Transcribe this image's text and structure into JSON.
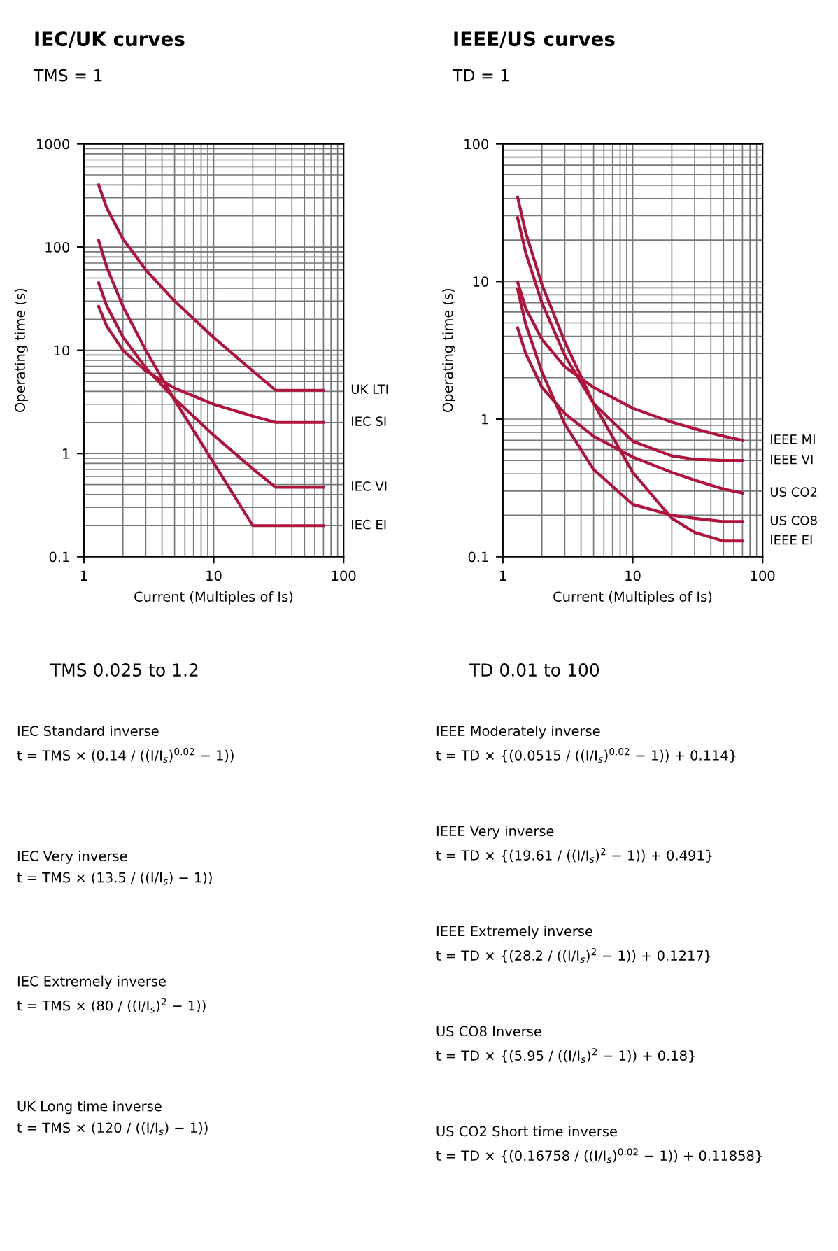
{
  "chart_data": [
    {
      "type": "line",
      "title": "IEC/UK curves",
      "subtitle": "TMS = 1",
      "xlabel": "Current (Multiples of Is)",
      "ylabel": "Operating time (s)",
      "log": "xy",
      "grid": true,
      "xlim": [
        1,
        100
      ],
      "ylim": [
        0.1,
        1000
      ],
      "xticks": [
        1,
        10,
        100
      ],
      "yticks": [
        0.1,
        1,
        10,
        100,
        1000
      ],
      "line_style": "solid",
      "series": [
        {
          "name": "UK LTI",
          "color": "#b0143c",
          "x": [
            1.3,
            1.5,
            2,
            3,
            5,
            10,
            20,
            30,
            70
          ],
          "values": [
            400,
            240,
            120,
            60,
            30,
            13.3,
            6.3,
            4.1,
            4.1
          ]
        },
        {
          "name": "IEC SI",
          "color": "#b0143c",
          "x": [
            1.3,
            1.5,
            2,
            3,
            5,
            10,
            20,
            30,
            70
          ],
          "values": [
            26.6,
            17.2,
            10,
            6.3,
            4.3,
            3,
            2.3,
            2,
            2
          ]
        },
        {
          "name": "IEC VI",
          "color": "#b0143c",
          "x": [
            1.3,
            1.5,
            2,
            3,
            5,
            10,
            20,
            30,
            70
          ],
          "values": [
            45,
            27,
            13.5,
            6.75,
            3.4,
            1.5,
            0.71,
            0.47,
            0.47
          ]
        },
        {
          "name": "IEC EI",
          "color": "#b0143c",
          "x": [
            1.3,
            1.5,
            2,
            3,
            5,
            10,
            20,
            70
          ],
          "values": [
            116,
            64,
            26.7,
            10,
            3.3,
            0.81,
            0.2,
            0.2
          ]
        }
      ],
      "annotations": [
        "TMS 0.025 to 1.2",
        "IEC Standard inverse\nt = TMS × (0.14 / ((I/I$_{s}$)$^{0.02}$ − 1))",
        "IEC Very inverse\nt = TMS × (13.5 / ((I/I$_{s}$) − 1))",
        "IEC Extremely inverse\nt = TMS × (80 / ((I/I$_{s}$)$^{2}$ − 1))",
        "UK Long time inverse\nt = TMS × (120 / ((I/I$_{s}$) − 1))"
      ]
    },
    {
      "type": "line",
      "title": "IEEE/US curves",
      "subtitle": "TD = 1",
      "xlabel": "Current (Multiples of Is)",
      "ylabel": "Operating time (s)",
      "log": "xy",
      "grid": true,
      "xlim": [
        1,
        100
      ],
      "ylim": [
        0.1,
        100
      ],
      "xticks": [
        1,
        10,
        100
      ],
      "yticks": [
        0.1,
        1,
        10,
        100
      ],
      "line_style": "solid",
      "series": [
        {
          "name": "IEEE MI",
          "color": "#b0143c",
          "x": [
            1.3,
            1.5,
            2,
            3,
            5,
            10,
            20,
            30,
            50,
            70
          ],
          "values": [
            9.9,
            6.4,
            3.8,
            2.4,
            1.7,
            1.2,
            0.95,
            0.85,
            0.75,
            0.7
          ]
        },
        {
          "name": "IEEE VI",
          "color": "#b0143c",
          "x": [
            1.3,
            1.5,
            2,
            3,
            5,
            10,
            20,
            30,
            50,
            70
          ],
          "values": [
            29,
            16.2,
            7,
            2.9,
            1.3,
            0.69,
            0.54,
            0.51,
            0.5,
            0.5
          ]
        },
        {
          "name": "US CO2",
          "color": "#b0143c",
          "x": [
            1.3,
            1.5,
            2,
            3,
            5,
            10,
            20,
            30,
            50,
            70
          ],
          "values": [
            4.6,
            3,
            1.7,
            1.1,
            0.75,
            0.53,
            0.41,
            0.36,
            0.31,
            0.29
          ]
        },
        {
          "name": "US CO8",
          "color": "#b0143c",
          "x": [
            1.3,
            1.5,
            2,
            3,
            5,
            10,
            20,
            30,
            50,
            70
          ],
          "values": [
            8.8,
            4.9,
            2.2,
            0.92,
            0.43,
            0.24,
            0.2,
            0.19,
            0.18,
            0.18
          ]
        },
        {
          "name": "IEEE EI",
          "color": "#b0143c",
          "x": [
            1.3,
            1.5,
            2,
            3,
            5,
            10,
            20,
            30,
            50,
            70
          ],
          "values": [
            41,
            22.7,
            9.5,
            3.65,
            1.3,
            0.41,
            0.19,
            0.15,
            0.13,
            0.13
          ]
        }
      ],
      "annotations": [
        "TD 0.01 to 100",
        "IEEE Moderately inverse\nt = TD × {(0.0515 / ((I/I$_{s}$)$^{0.02}$ − 1)) + 0.114}",
        "IEEE Very inverse\nt = TD × {(19.61 / ((I/I$_{s}$)$^{2}$ − 1)) + 0.491}",
        "IEEE Extremely inverse\nt = TD × {(28.2 / ((I/I$_{s}$)$^{2}$ − 1)) + 0.1217}",
        "US CO8 Inverse\nt = TD × {(5.95 / ((I/I$_{s}$)$^{2}$ − 1)) + 0.18}",
        "US CO2 Short time inverse\nt = TD × {(0.16758 / ((I/I$_{s}$)$^{0.02}$ − 1)) + 0.11858}"
      ]
    }
  ]
}
